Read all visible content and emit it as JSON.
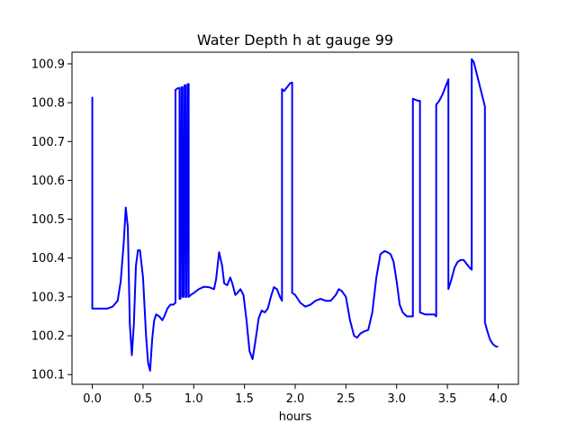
{
  "chart_data": {
    "type": "line",
    "title": "Water Depth h at gauge 99",
    "xlabel": "hours",
    "ylabel": "",
    "xlim": [
      -0.2,
      4.2
    ],
    "ylim": [
      100.075,
      100.93
    ],
    "xticks": [
      "0.0",
      "0.5",
      "1.0",
      "1.5",
      "2.0",
      "2.5",
      "3.0",
      "3.5",
      "4.0"
    ],
    "yticks": [
      "100.1",
      "100.2",
      "100.3",
      "100.4",
      "100.5",
      "100.6",
      "100.7",
      "100.8",
      "100.9"
    ],
    "grid": false,
    "series": [
      {
        "color": "#0000ff",
        "x": [
          0.0,
          0.0,
          0.01,
          0.1,
          0.15,
          0.2,
          0.25,
          0.28,
          0.31,
          0.33,
          0.35,
          0.37,
          0.39,
          0.41,
          0.43,
          0.45,
          0.47,
          0.5,
          0.53,
          0.55,
          0.57,
          0.59,
          0.61,
          0.63,
          0.66,
          0.69,
          0.71,
          0.74,
          0.77,
          0.8,
          0.82,
          0.82,
          0.85,
          0.86,
          0.86,
          0.87,
          0.88,
          0.89,
          0.89,
          0.9,
          0.91,
          0.92,
          0.92,
          0.93,
          0.94,
          0.95,
          0.95,
          0.97,
          1.0,
          1.05,
          1.1,
          1.15,
          1.2,
          1.22,
          1.25,
          1.28,
          1.3,
          1.33,
          1.36,
          1.38,
          1.41,
          1.43,
          1.46,
          1.49,
          1.52,
          1.55,
          1.58,
          1.61,
          1.64,
          1.67,
          1.7,
          1.73,
          1.76,
          1.79,
          1.82,
          1.85,
          1.87,
          1.87,
          1.89,
          1.92,
          1.95,
          1.97,
          1.97,
          2.0,
          2.05,
          2.1,
          2.15,
          2.2,
          2.25,
          2.3,
          2.35,
          2.4,
          2.43,
          2.46,
          2.5,
          2.54,
          2.58,
          2.61,
          2.64,
          2.67,
          2.72,
          2.76,
          2.8,
          2.84,
          2.88,
          2.91,
          2.94,
          2.97,
          3.0,
          3.03,
          3.06,
          3.1,
          3.16,
          3.16,
          3.21,
          3.23,
          3.23,
          3.28,
          3.34,
          3.37,
          3.39,
          3.39,
          3.42,
          3.45,
          3.48,
          3.51,
          3.51,
          3.54,
          3.57,
          3.6,
          3.63,
          3.66,
          3.69,
          3.72,
          3.74,
          3.74,
          3.76,
          3.87,
          3.87,
          3.89,
          3.92,
          3.95,
          3.98,
          4.0
        ],
        "y": [
          100.815,
          100.27,
          100.27,
          100.27,
          100.27,
          100.275,
          100.29,
          100.34,
          100.44,
          100.53,
          100.48,
          100.23,
          100.15,
          100.23,
          100.38,
          100.42,
          100.42,
          100.35,
          100.2,
          100.13,
          100.11,
          100.19,
          100.24,
          100.255,
          100.25,
          100.24,
          100.25,
          100.27,
          100.28,
          100.28,
          100.285,
          100.833,
          100.838,
          100.838,
          100.295,
          100.295,
          100.84,
          100.84,
          100.3,
          100.3,
          100.845,
          100.845,
          100.3,
          100.3,
          100.848,
          100.848,
          100.3,
          100.305,
          100.31,
          100.32,
          100.326,
          100.325,
          100.32,
          100.345,
          100.415,
          100.38,
          100.335,
          100.33,
          100.35,
          100.335,
          100.305,
          100.31,
          100.32,
          100.305,
          100.24,
          100.16,
          100.14,
          100.19,
          100.245,
          100.265,
          100.26,
          100.27,
          100.3,
          100.325,
          100.32,
          100.3,
          100.29,
          100.835,
          100.83,
          100.84,
          100.85,
          100.852,
          100.31,
          100.305,
          100.285,
          100.275,
          100.28,
          100.29,
          100.295,
          100.29,
          100.29,
          100.305,
          100.32,
          100.315,
          100.3,
          100.24,
          100.2,
          100.195,
          100.205,
          100.21,
          100.215,
          100.26,
          100.35,
          100.41,
          100.418,
          100.415,
          100.41,
          100.39,
          100.34,
          100.28,
          100.26,
          100.25,
          100.25,
          100.81,
          100.805,
          100.805,
          100.26,
          100.255,
          100.255,
          100.255,
          100.25,
          100.795,
          100.805,
          100.82,
          100.84,
          100.86,
          100.32,
          100.345,
          100.375,
          100.39,
          100.395,
          100.395,
          100.385,
          100.375,
          100.37,
          100.912,
          100.905,
          100.79,
          100.235,
          100.215,
          100.19,
          100.178,
          100.172,
          100.172
        ]
      }
    ]
  }
}
